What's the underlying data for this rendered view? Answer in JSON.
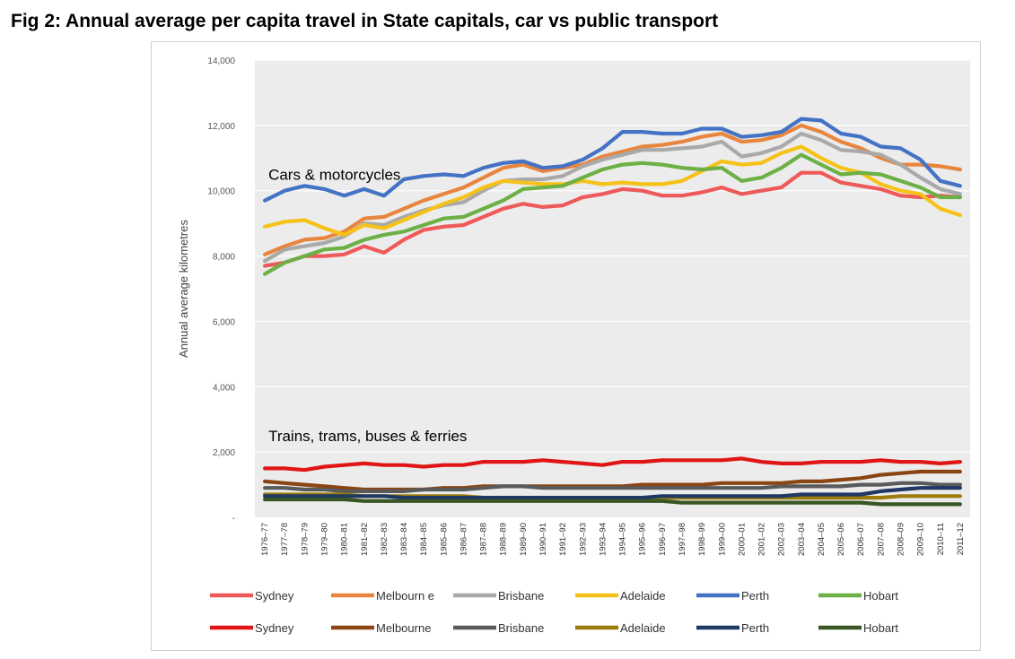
{
  "figure": {
    "title": "Fig 2:  Annual average per capita travel in State capitals, car vs public transport"
  },
  "chart_data": {
    "type": "line",
    "title": "",
    "xlabel": "",
    "ylabel": "Annual average kilometres",
    "ylim": [
      0,
      14000
    ],
    "yticks": [
      0,
      2000,
      4000,
      6000,
      8000,
      10000,
      12000,
      14000
    ],
    "ytick_labels": [
      "-",
      "2,000",
      "4,000",
      "6,000",
      "8,000",
      "10,000",
      "12,000",
      "14,000"
    ],
    "grid": true,
    "legend_position": "bottom",
    "annotations": [
      {
        "text": "Cars & motorcycles",
        "x": "1976–77",
        "y": 10500
      },
      {
        "text": "Trains, trams, buses & ferries",
        "x": "1976–77",
        "y": 2500
      }
    ],
    "categories": [
      "1976–77",
      "1977–78",
      "1978–79",
      "1979–80",
      "1980–81",
      "1981–82",
      "1982–83",
      "1983–84",
      "1984–85",
      "1985–86",
      "1986–87",
      "1987–88",
      "1988–89",
      "1989–90",
      "1990–91",
      "1991–92",
      "1992–93",
      "1993–94",
      "1994–95",
      "1995–96",
      "1996–97",
      "1997–98",
      "1998–99",
      "1999–00",
      "2000–01",
      "2001–02",
      "2002–03",
      "2003–04",
      "2004–05",
      "2005–06",
      "2006–07",
      "2007–08",
      "2008–09",
      "2009–10",
      "2010–11",
      "2011–12"
    ],
    "series": [
      {
        "name": "Sydney",
        "group": "car",
        "color": "#ee5a5a",
        "values": [
          7700,
          7800,
          8000,
          8000,
          8050,
          8300,
          8100,
          8500,
          8800,
          8900,
          8950,
          9200,
          9450,
          9600,
          9500,
          9550,
          9800,
          9900,
          10050,
          10000,
          9850,
          9850,
          9950,
          10100,
          9900,
          10000,
          10100,
          10550,
          10550,
          10250,
          10150,
          10050,
          9850,
          9800,
          9850,
          9800
        ]
      },
      {
        "name": "Melbourn e",
        "group": "car",
        "color": "#e8853e",
        "values": [
          8050,
          8300,
          8500,
          8550,
          8750,
          9150,
          9200,
          9450,
          9700,
          9900,
          10100,
          10400,
          10700,
          10800,
          10600,
          10700,
          10800,
          11050,
          11200,
          11350,
          11400,
          11500,
          11650,
          11750,
          11500,
          11550,
          11700,
          12000,
          11800,
          11500,
          11300,
          11000,
          10800,
          10800,
          10750,
          10650
        ]
      },
      {
        "name": "Brisbane",
        "group": "car",
        "color": "#a9a9a9",
        "values": [
          7850,
          8200,
          8300,
          8400,
          8600,
          9000,
          8950,
          9200,
          9400,
          9550,
          9650,
          10000,
          10300,
          10350,
          10350,
          10450,
          10750,
          10950,
          11100,
          11250,
          11250,
          11300,
          11350,
          11500,
          11050,
          11150,
          11350,
          11750,
          11550,
          11250,
          11200,
          11100,
          10800,
          10400,
          10050,
          9900
        ]
      },
      {
        "name": "Adelaide",
        "group": "car",
        "color": "#f6c21a",
        "values": [
          8900,
          9050,
          9100,
          8850,
          8650,
          8950,
          8850,
          9100,
          9350,
          9600,
          9800,
          10100,
          10300,
          10250,
          10200,
          10200,
          10300,
          10200,
          10250,
          10200,
          10200,
          10300,
          10600,
          10900,
          10800,
          10850,
          11150,
          11350,
          11000,
          10700,
          10550,
          10200,
          10000,
          9900,
          9450,
          9250
        ]
      },
      {
        "name": "Perth",
        "group": "car",
        "color": "#4472c4",
        "values": [
          9700,
          10000,
          10150,
          10050,
          9850,
          10050,
          9850,
          10350,
          10450,
          10500,
          10450,
          10700,
          10850,
          10900,
          10700,
          10750,
          10950,
          11300,
          11800,
          11800,
          11750,
          11750,
          11900,
          11900,
          11650,
          11700,
          11800,
          12200,
          12150,
          11750,
          11650,
          11350,
          11300,
          10950,
          10300,
          10150
        ]
      },
      {
        "name": "Hobart",
        "group": "car",
        "color": "#6db045",
        "values": [
          7450,
          7800,
          8000,
          8200,
          8250,
          8500,
          8650,
          8750,
          8950,
          9150,
          9200,
          9450,
          9700,
          10050,
          10100,
          10150,
          10400,
          10650,
          10800,
          10850,
          10800,
          10700,
          10650,
          10700,
          10300,
          10400,
          10700,
          11100,
          10800,
          10500,
          10550,
          10500,
          10300,
          10100,
          9800,
          9800
        ]
      },
      {
        "name": "Sydney",
        "group": "pt",
        "color": "#e01515",
        "values": [
          1500,
          1500,
          1450,
          1550,
          1600,
          1650,
          1600,
          1600,
          1550,
          1600,
          1600,
          1700,
          1700,
          1700,
          1750,
          1700,
          1650,
          1600,
          1700,
          1700,
          1750,
          1750,
          1750,
          1750,
          1800,
          1700,
          1650,
          1650,
          1700,
          1700,
          1700,
          1750,
          1700,
          1700,
          1650,
          1700
        ]
      },
      {
        "name": "Melbourne",
        "group": "pt",
        "color": "#8b4513",
        "values": [
          1100,
          1050,
          1000,
          950,
          900,
          850,
          850,
          850,
          850,
          900,
          900,
          950,
          950,
          950,
          950,
          950,
          950,
          950,
          950,
          1000,
          1000,
          1000,
          1000,
          1050,
          1050,
          1050,
          1050,
          1100,
          1100,
          1150,
          1200,
          1300,
          1350,
          1400,
          1400,
          1400
        ]
      },
      {
        "name": "Brisbane",
        "group": "pt",
        "color": "#5a5a5a",
        "values": [
          900,
          900,
          850,
          850,
          800,
          800,
          800,
          800,
          850,
          850,
          850,
          900,
          950,
          950,
          900,
          900,
          900,
          900,
          900,
          900,
          900,
          900,
          900,
          900,
          900,
          900,
          950,
          950,
          950,
          950,
          1000,
          1000,
          1050,
          1050,
          1000,
          1000
        ]
      },
      {
        "name": "Adelaide",
        "group": "pt",
        "color": "#9c7b0a",
        "values": [
          700,
          700,
          700,
          700,
          700,
          650,
          650,
          650,
          650,
          650,
          650,
          600,
          600,
          600,
          600,
          600,
          600,
          600,
          600,
          600,
          600,
          600,
          600,
          600,
          600,
          600,
          600,
          600,
          600,
          600,
          600,
          600,
          650,
          650,
          650,
          650
        ]
      },
      {
        "name": "Perth",
        "group": "pt",
        "color": "#1f3864",
        "values": [
          650,
          650,
          650,
          650,
          650,
          650,
          650,
          600,
          600,
          600,
          600,
          600,
          600,
          600,
          600,
          600,
          600,
          600,
          600,
          600,
          650,
          650,
          650,
          650,
          650,
          650,
          650,
          700,
          700,
          700,
          700,
          800,
          850,
          900,
          900,
          900
        ]
      },
      {
        "name": "Hobart",
        "group": "pt",
        "color": "#375623",
        "values": [
          550,
          550,
          550,
          550,
          550,
          500,
          500,
          500,
          500,
          500,
          500,
          500,
          500,
          500,
          500,
          500,
          500,
          500,
          500,
          500,
          500,
          450,
          450,
          450,
          450,
          450,
          450,
          450,
          450,
          450,
          450,
          400,
          400,
          400,
          400,
          400
        ]
      }
    ]
  }
}
